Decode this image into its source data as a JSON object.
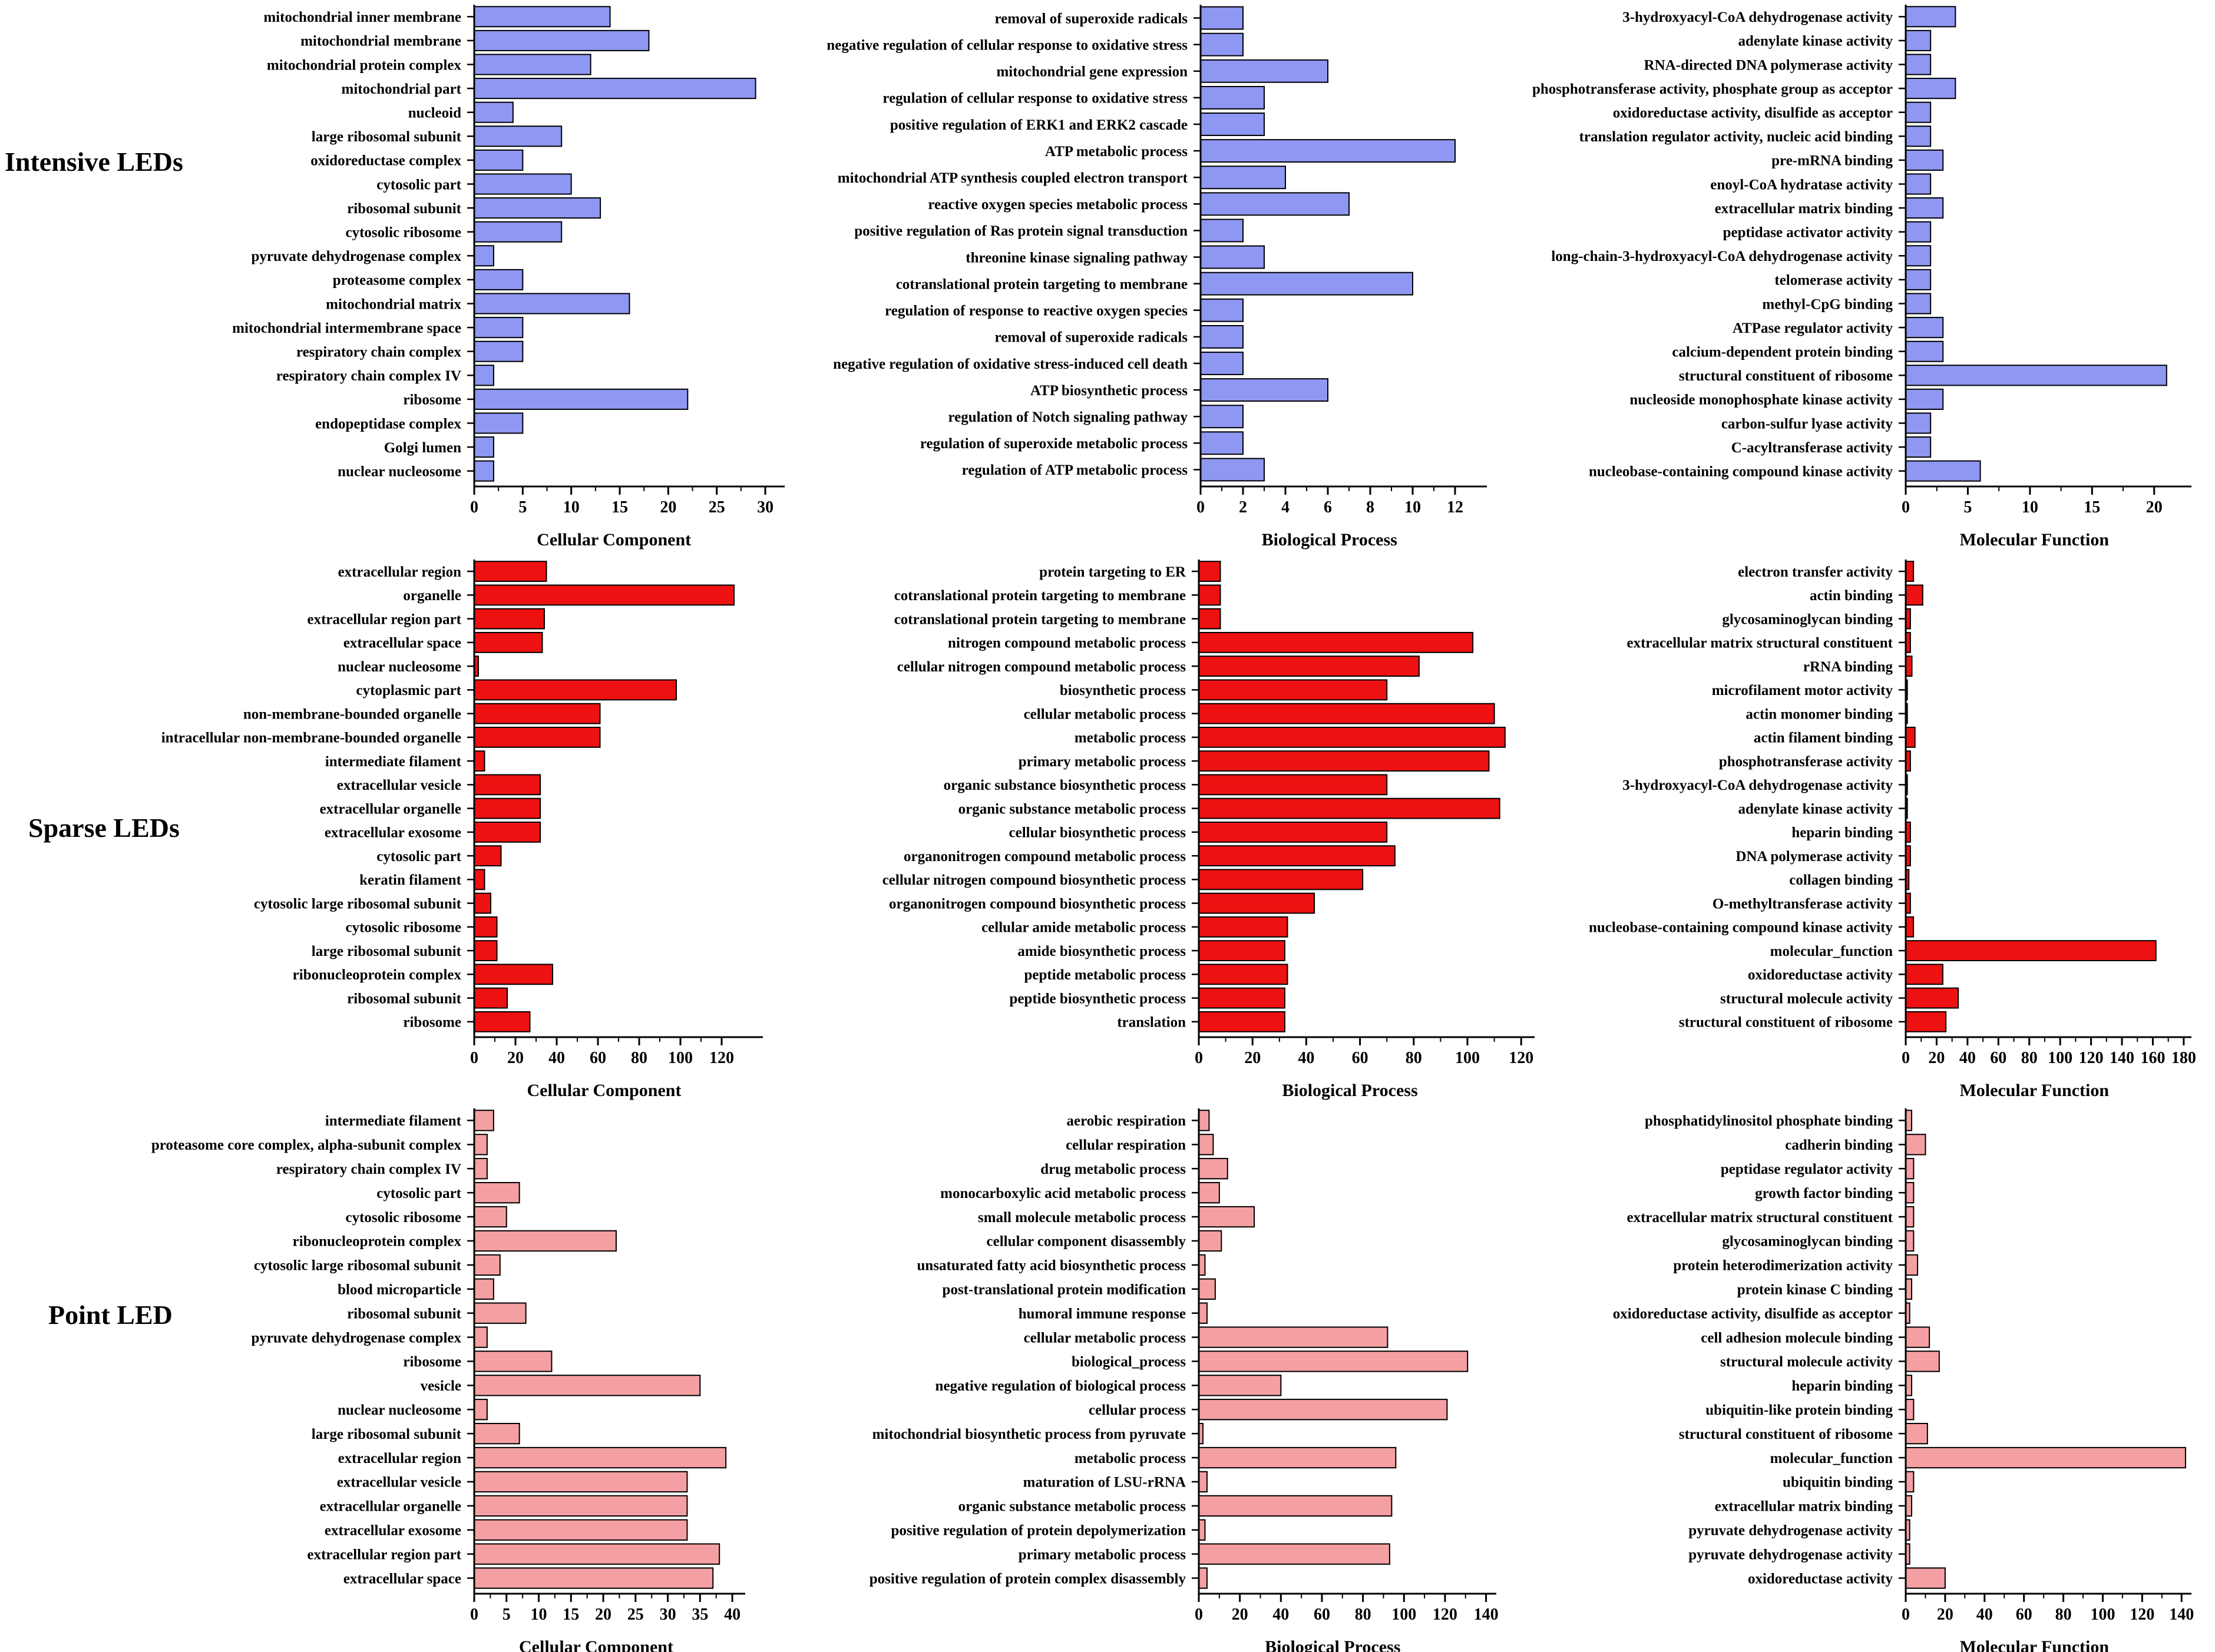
{
  "colors": {
    "intensive": "#8e97f2",
    "sparse": "#ee1111",
    "point": "#f4a0a2",
    "stroke": "#000000"
  },
  "row_titles": [
    "Intensive LEDs",
    "Sparse LEDs",
    "Point LED"
  ],
  "chart_data": [
    {
      "type": "bar",
      "orientation": "horizontal",
      "row": 0,
      "col": 0,
      "xlabel": "Cellular Component",
      "xlim": [
        0,
        32
      ],
      "ticks": [
        0,
        5,
        10,
        15,
        20,
        25,
        30
      ],
      "categories": [
        "mitochondrial inner membrane",
        "mitochondrial membrane",
        "mitochondrial protein complex",
        "mitochondrial part",
        "nucleoid",
        "large ribosomal subunit",
        "oxidoreductase complex",
        "cytosolic part",
        "ribosomal subunit",
        "cytosolic ribosome",
        "pyruvate dehydrogenase complex",
        "proteasome complex",
        "mitochondrial matrix",
        "mitochondrial intermembrane space",
        "respiratory chain complex",
        "respiratory chain complex IV",
        "ribosome",
        "endopeptidase complex",
        "Golgi lumen",
        "nuclear nucleosome"
      ],
      "values": [
        14,
        18,
        12,
        29,
        4,
        9,
        5,
        10,
        13,
        9,
        2,
        5,
        16,
        5,
        5,
        2,
        22,
        5,
        2,
        2
      ]
    },
    {
      "type": "bar",
      "orientation": "horizontal",
      "row": 0,
      "col": 1,
      "xlabel": "Biological Process",
      "xlim": [
        0,
        13.5
      ],
      "ticks": [
        0,
        2,
        4,
        6,
        8,
        10,
        12
      ],
      "categories": [
        "removal of superoxide radicals",
        "negative regulation of cellular response to oxidative stress",
        "mitochondrial gene expression",
        "regulation of cellular response to oxidative stress",
        "positive regulation of ERK1 and ERK2 cascade",
        "ATP metabolic process",
        "mitochondrial ATP synthesis coupled electron transport",
        "reactive oxygen species metabolic process",
        "positive regulation of Ras protein signal transduction",
        "threonine kinase signaling pathway",
        "cotranslational protein targeting to membrane",
        "regulation of response to reactive oxygen species",
        "removal of superoxide radicals",
        "negative regulation of oxidative stress-induced cell death",
        "ATP biosynthetic process",
        "regulation of Notch signaling pathway",
        "regulation of superoxide metabolic process",
        "regulation of ATP metabolic process"
      ],
      "values": [
        2,
        2,
        6,
        3,
        3,
        12,
        4,
        7,
        2,
        3,
        10,
        2,
        2,
        2,
        6,
        2,
        2,
        3
      ]
    },
    {
      "type": "bar",
      "orientation": "horizontal",
      "row": 0,
      "col": 2,
      "xlabel": "Molecular Function",
      "xlim": [
        0,
        23
      ],
      "ticks": [
        0,
        5,
        10,
        15,
        20
      ],
      "categories": [
        "3-hydroxyacyl-CoA dehydrogenase activity",
        "adenylate kinase activity",
        "RNA-directed DNA polymerase activity",
        "phosphotransferase activity, phosphate group as acceptor",
        "oxidoreductase activity, disulfide as acceptor",
        "translation regulator activity, nucleic acid binding",
        "pre-mRNA binding",
        "enoyl-CoA hydratase activity",
        "extracellular matrix binding",
        "peptidase activator activity",
        "long-chain-3-hydroxyacyl-CoA dehydrogenase activity",
        "telomerase activity",
        "methyl-CpG binding",
        "ATPase regulator activity",
        "calcium-dependent protein binding",
        "structural constituent of ribosome",
        "nucleoside monophosphate kinase activity",
        "carbon-sulfur lyase activity",
        "C-acyltransferase activity",
        "nucleobase-containing compound kinase activity"
      ],
      "values": [
        4,
        2,
        2,
        4,
        2,
        2,
        3,
        2,
        3,
        2,
        2,
        2,
        2,
        3,
        3,
        21,
        3,
        2,
        2,
        6
      ]
    },
    {
      "type": "bar",
      "orientation": "horizontal",
      "row": 1,
      "col": 0,
      "xlabel": "Cellular Component",
      "xlim": [
        0,
        140
      ],
      "ticks": [
        0,
        20,
        40,
        60,
        80,
        100,
        120
      ],
      "categories": [
        "extracellular region",
        "organelle",
        "extracellular region part",
        "extracellular space",
        "nuclear nucleosome",
        "cytoplasmic part",
        "non-membrane-bounded organelle",
        "intracellular non-membrane-bounded organelle",
        "intermediate filament",
        "extracellular vesicle",
        "extracellular organelle",
        "extracellular exosome",
        "cytosolic part",
        "keratin filament",
        "cytosolic large ribosomal subunit",
        "cytosolic ribosome",
        "large ribosomal subunit",
        "ribonucleoprotein complex",
        "ribosomal subunit",
        "ribosome"
      ],
      "values": [
        35,
        126,
        34,
        33,
        2,
        98,
        61,
        61,
        5,
        32,
        32,
        32,
        13,
        5,
        8,
        11,
        11,
        38,
        16,
        27
      ]
    },
    {
      "type": "bar",
      "orientation": "horizontal",
      "row": 1,
      "col": 1,
      "xlabel": "Biological Process",
      "xlim": [
        0,
        125
      ],
      "ticks": [
        0,
        20,
        40,
        60,
        80,
        100,
        120
      ],
      "categories": [
        "protein targeting to ER",
        "cotranslational protein targeting to membrane",
        "cotranslational protein targeting to membrane",
        "nitrogen compound metabolic process",
        "cellular nitrogen compound metabolic process",
        "biosynthetic process",
        "cellular metabolic process",
        "metabolic process",
        "primary metabolic process",
        "organic substance biosynthetic process",
        "organic substance metabolic process",
        "cellular biosynthetic process",
        "organonitrogen compound metabolic process",
        "cellular nitrogen compound biosynthetic process",
        "organonitrogen compound biosynthetic process",
        "cellular amide metabolic process",
        "amide biosynthetic process",
        "peptide metabolic process",
        "peptide biosynthetic process",
        "translation"
      ],
      "values": [
        8,
        8,
        8,
        102,
        82,
        70,
        110,
        114,
        108,
        70,
        112,
        70,
        73,
        61,
        43,
        33,
        32,
        33,
        32,
        32
      ]
    },
    {
      "type": "bar",
      "orientation": "horizontal",
      "row": 1,
      "col": 2,
      "xlabel": "Molecular Function",
      "xlim": [
        0,
        185
      ],
      "ticks": [
        0,
        20,
        40,
        60,
        80,
        100,
        120,
        140,
        160,
        180
      ],
      "categories": [
        "electron transfer activity",
        "actin binding",
        "glycosaminoglycan binding",
        "extracellular matrix structural constituent",
        "rRNA binding",
        "microfilament motor activity",
        "actin monomer binding",
        "actin filament binding",
        "phosphotransferase activity",
        "3-hydroxyacyl-CoA dehydrogenase activity",
        "adenylate kinase activity",
        "heparin binding",
        "DNA polymerase activity",
        "collagen binding",
        "O-methyltransferase activity",
        "nucleobase-containing compound kinase activity",
        "molecular_function",
        "oxidoreductase activity",
        "structural molecule activity",
        "structural constituent of ribosome"
      ],
      "values": [
        5,
        11,
        3,
        3,
        4,
        1,
        1,
        6,
        3,
        1,
        1,
        3,
        3,
        2,
        3,
        5,
        162,
        24,
        34,
        26
      ]
    },
    {
      "type": "bar",
      "orientation": "horizontal",
      "row": 2,
      "col": 0,
      "xlabel": "Cellular Component",
      "xlim": [
        0,
        42
      ],
      "ticks": [
        0,
        5,
        10,
        15,
        20,
        25,
        30,
        35,
        40
      ],
      "categories": [
        "intermediate filament",
        "proteasome core complex, alpha-subunit complex",
        "respiratory chain complex IV",
        "cytosolic part",
        "cytosolic ribosome",
        "ribonucleoprotein complex",
        "cytosolic large ribosomal subunit",
        "blood microparticle",
        "ribosomal subunit",
        "pyruvate dehydrogenase complex",
        "ribosome",
        "vesicle",
        "nuclear nucleosome",
        "large ribosomal subunit",
        "extracellular region",
        "extracellular vesicle",
        "extracellular organelle",
        "extracellular exosome",
        "extracellular region part",
        "extracellular space"
      ],
      "values": [
        3,
        2,
        2,
        7,
        5,
        22,
        4,
        3,
        8,
        2,
        12,
        35,
        2,
        7,
        39,
        33,
        33,
        33,
        38,
        37
      ]
    },
    {
      "type": "bar",
      "orientation": "horizontal",
      "row": 2,
      "col": 1,
      "xlabel": "Biological Process",
      "xlim": [
        0,
        145
      ],
      "ticks": [
        0,
        20,
        40,
        60,
        80,
        100,
        120,
        140
      ],
      "categories": [
        "aerobic respiration",
        "cellular respiration",
        "drug metabolic process",
        "monocarboxylic acid metabolic process",
        "small molecule metabolic process",
        "cellular component disassembly",
        "unsaturated fatty acid biosynthetic process",
        "post-translational protein modification",
        "humoral immune response",
        "cellular metabolic process",
        "biological_process",
        "negative regulation of biological process",
        "cellular process",
        "mitochondrial  biosynthetic process from pyruvate",
        "metabolic process",
        "maturation of LSU-rRNA",
        "organic substance metabolic process",
        "positive regulation of protein depolymerization",
        "primary metabolic process",
        "positive regulation of protein complex disassembly"
      ],
      "values": [
        5,
        7,
        14,
        10,
        27,
        11,
        3,
        8,
        4,
        92,
        131,
        40,
        121,
        2,
        96,
        4,
        94,
        3,
        93,
        4
      ]
    },
    {
      "type": "bar",
      "orientation": "horizontal",
      "row": 2,
      "col": 2,
      "xlabel": "Molecular Function",
      "xlim": [
        0,
        145
      ],
      "ticks": [
        0,
        20,
        40,
        60,
        80,
        100,
        120,
        140
      ],
      "categories": [
        "phosphatidylinositol phosphate binding",
        "cadherin binding",
        "peptidase regulator activity",
        "growth factor binding",
        "extracellular matrix structural constituent",
        "glycosaminoglycan binding",
        "protein heterodimerization activity",
        "protein kinase C binding",
        "oxidoreductase activity,  disulfide as acceptor",
        "cell adhesion molecule binding",
        "structural molecule activity",
        "heparin binding",
        "ubiquitin-like protein binding",
        "structural constituent of ribosome",
        "molecular_function",
        "ubiquitin binding",
        "extracellular matrix binding",
        "pyruvate dehydrogenase activity",
        "pyruvate dehydrogenase  activity",
        "oxidoreductase activity"
      ],
      "values": [
        3,
        10,
        4,
        4,
        4,
        4,
        6,
        3,
        2,
        12,
        17,
        3,
        4,
        11,
        142,
        4,
        3,
        2,
        2,
        20
      ]
    }
  ]
}
